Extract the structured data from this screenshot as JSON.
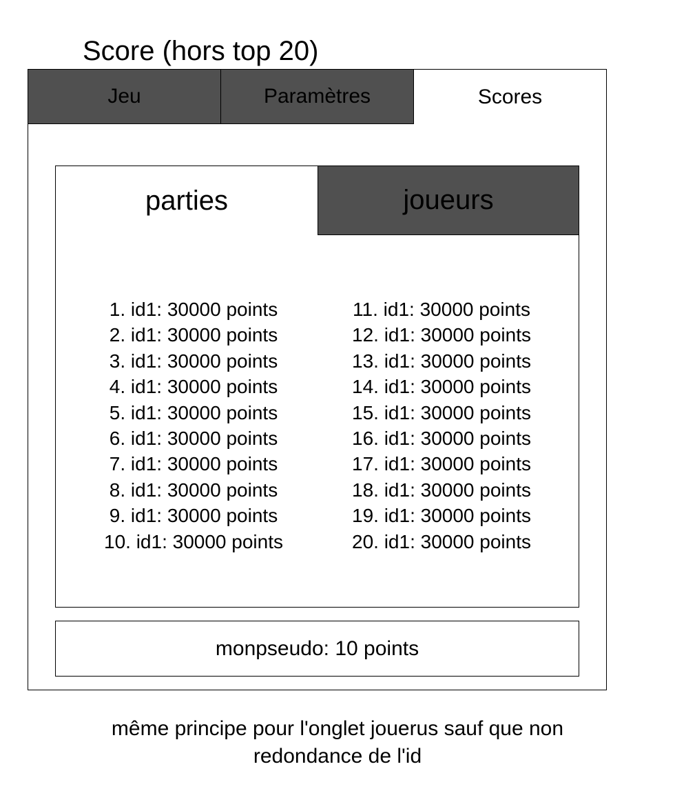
{
  "page_title": "Score (hors top 20)",
  "main_tabs": [
    {
      "label": "Jeu",
      "active": false
    },
    {
      "label": "Paramètres",
      "active": false
    },
    {
      "label": "Scores",
      "active": true
    }
  ],
  "sub_tabs": [
    {
      "label": "parties",
      "active": true
    },
    {
      "label": "joueurs",
      "active": false
    }
  ],
  "scores_left": [
    "1. id1: 30000 points",
    "2. id1: 30000 points",
    "3. id1: 30000 points",
    "4. id1: 30000 points",
    "5. id1: 30000 points",
    "6. id1: 30000 points",
    "7. id1: 30000 points",
    "8. id1: 30000 points",
    "9. id1: 30000 points",
    "10. id1: 30000 points"
  ],
  "scores_right": [
    "11. id1: 30000 points",
    "12. id1: 30000 points",
    "13. id1: 30000 points",
    "14. id1: 30000 points",
    "15. id1: 30000 points",
    "16. id1: 30000 points",
    "17. id1: 30000 points",
    "18. id1: 30000 points",
    "19. id1: 30000 points",
    "20. id1: 30000 points"
  ],
  "my_score": "monpseudo: 10 points",
  "note_lines": [
    "même principe pour l'onglet jouerus sauf que non",
    "redondance de l'id"
  ],
  "colors": {
    "inactive_tab": "#505050",
    "active_tab": "#ffffff",
    "border": "#000000"
  }
}
